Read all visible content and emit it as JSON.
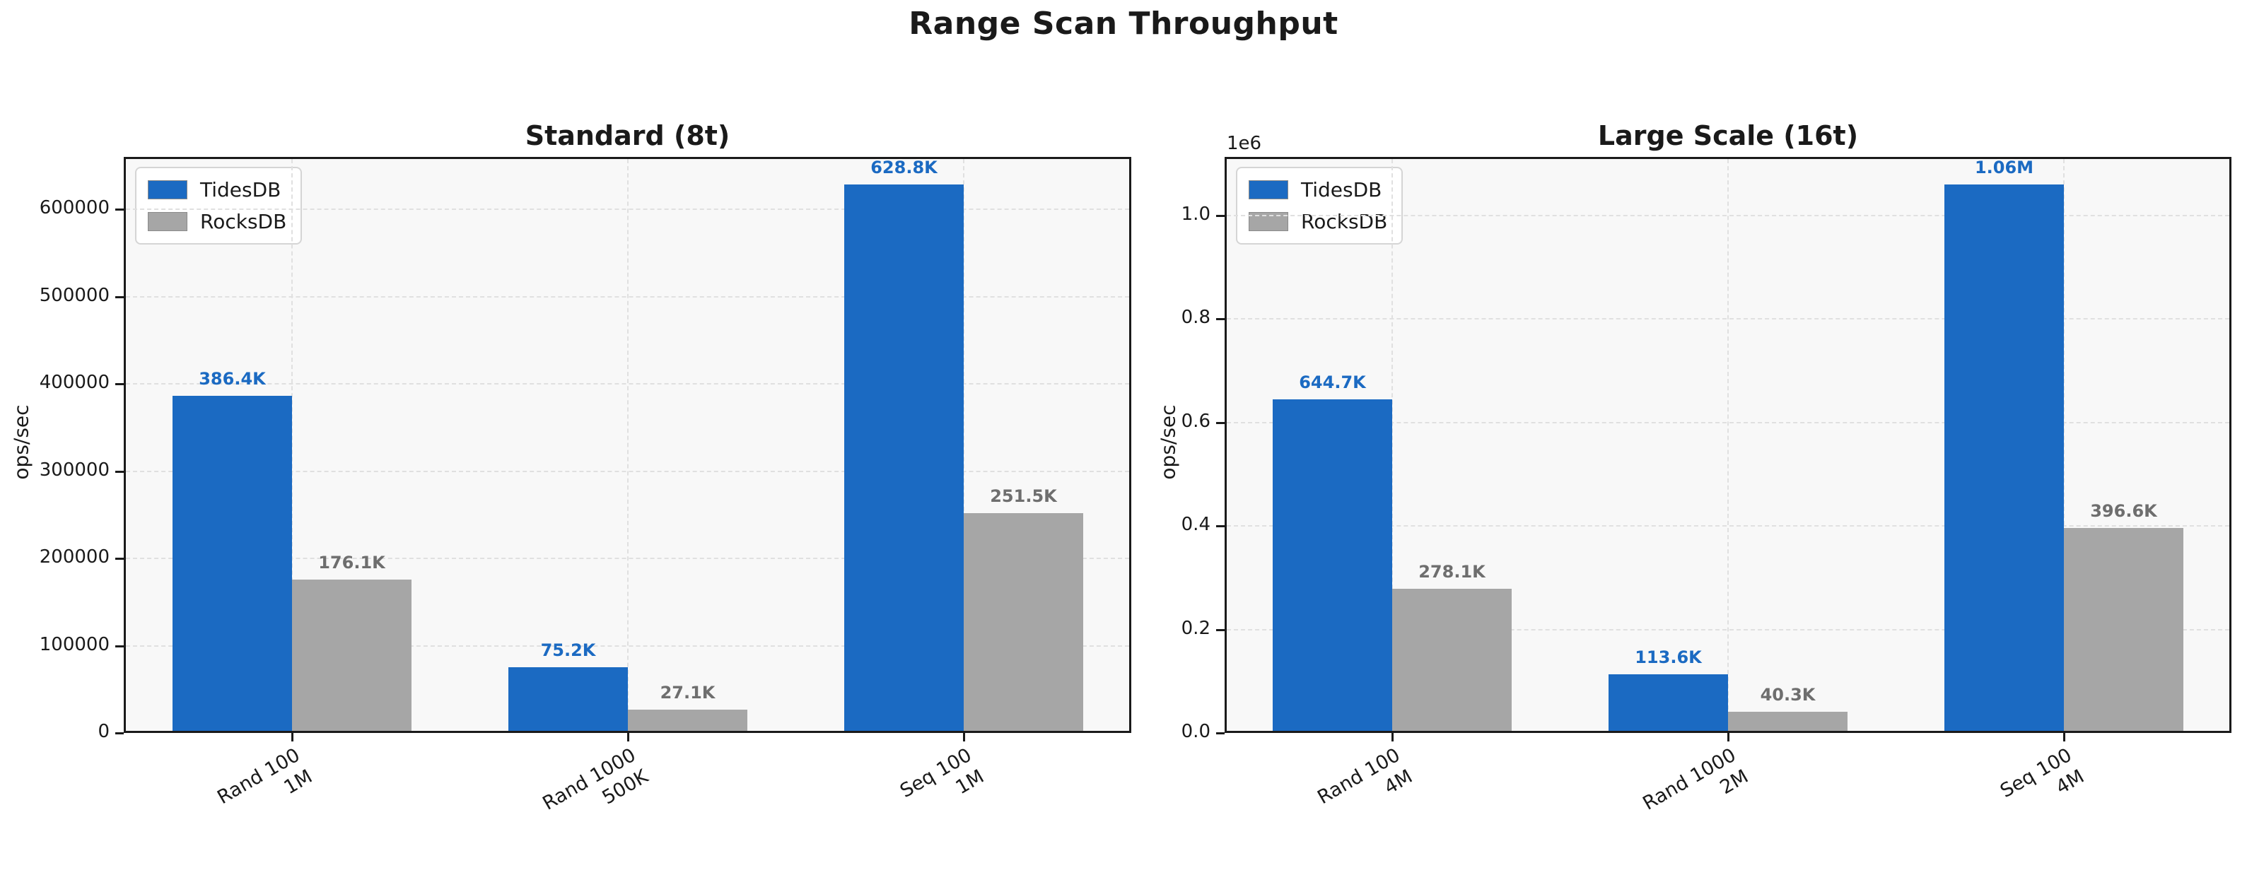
{
  "page_title": "Range Scan Throughput",
  "theme": {
    "tidesdb_color": "#1b6ac2",
    "rocksdb_color": "#a6a6a6",
    "gray_label_color": "#6e6e6e",
    "spine_color": "#1a1a1a",
    "grid_color": "#e0e0e0",
    "plot_bg": "#f8f8f8"
  },
  "chart_data": [
    {
      "type": "bar",
      "title": "Standard (8t)",
      "ylabel": "ops/sec",
      "categories": [
        "Rand 100\n1M",
        "Rand 1000\n500K",
        "Seq 100\n1M"
      ],
      "series": [
        {
          "name": "TidesDB",
          "color": "#1b6ac2",
          "label_color": "#1b6ac2",
          "values": [
            386400,
            75200,
            628800
          ],
          "labels": [
            "386.4K",
            "75.2K",
            "628.8K"
          ]
        },
        {
          "name": "RocksDB",
          "color": "#a6a6a6",
          "label_color": "#6e6e6e",
          "values": [
            176100,
            27100,
            251500
          ],
          "labels": [
            "176.1K",
            "27.1K",
            "251.5K"
          ]
        }
      ],
      "ylim": [
        0,
        660000
      ],
      "yticks": [
        0,
        100000,
        200000,
        300000,
        400000,
        500000,
        600000
      ],
      "ytick_labels": [
        "0",
        "100000",
        "200000",
        "300000",
        "400000",
        "500000",
        "600000"
      ],
      "offset_text": "",
      "grid": true,
      "legend_position": "upper left"
    },
    {
      "type": "bar",
      "title": "Large Scale (16t)",
      "ylabel": "ops/sec",
      "categories": [
        "Rand 100\n4M",
        "Rand 1000\n2M",
        "Seq 100\n4M"
      ],
      "series": [
        {
          "name": "TidesDB",
          "color": "#1b6ac2",
          "label_color": "#1b6ac2",
          "values": [
            644700,
            113600,
            1060000
          ],
          "labels": [
            "644.7K",
            "113.6K",
            "1.06M"
          ]
        },
        {
          "name": "RocksDB",
          "color": "#a6a6a6",
          "label_color": "#6e6e6e",
          "values": [
            278100,
            40300,
            396600
          ],
          "labels": [
            "278.1K",
            "40.3K",
            "396.6K"
          ]
        }
      ],
      "ylim": [
        0,
        1113000
      ],
      "yticks": [
        0,
        200000,
        400000,
        600000,
        800000,
        1000000
      ],
      "ytick_labels": [
        "0.0",
        "0.2",
        "0.4",
        "0.6",
        "0.8",
        "1.0"
      ],
      "offset_text": "1e6",
      "grid": true,
      "legend_position": "upper left"
    }
  ]
}
